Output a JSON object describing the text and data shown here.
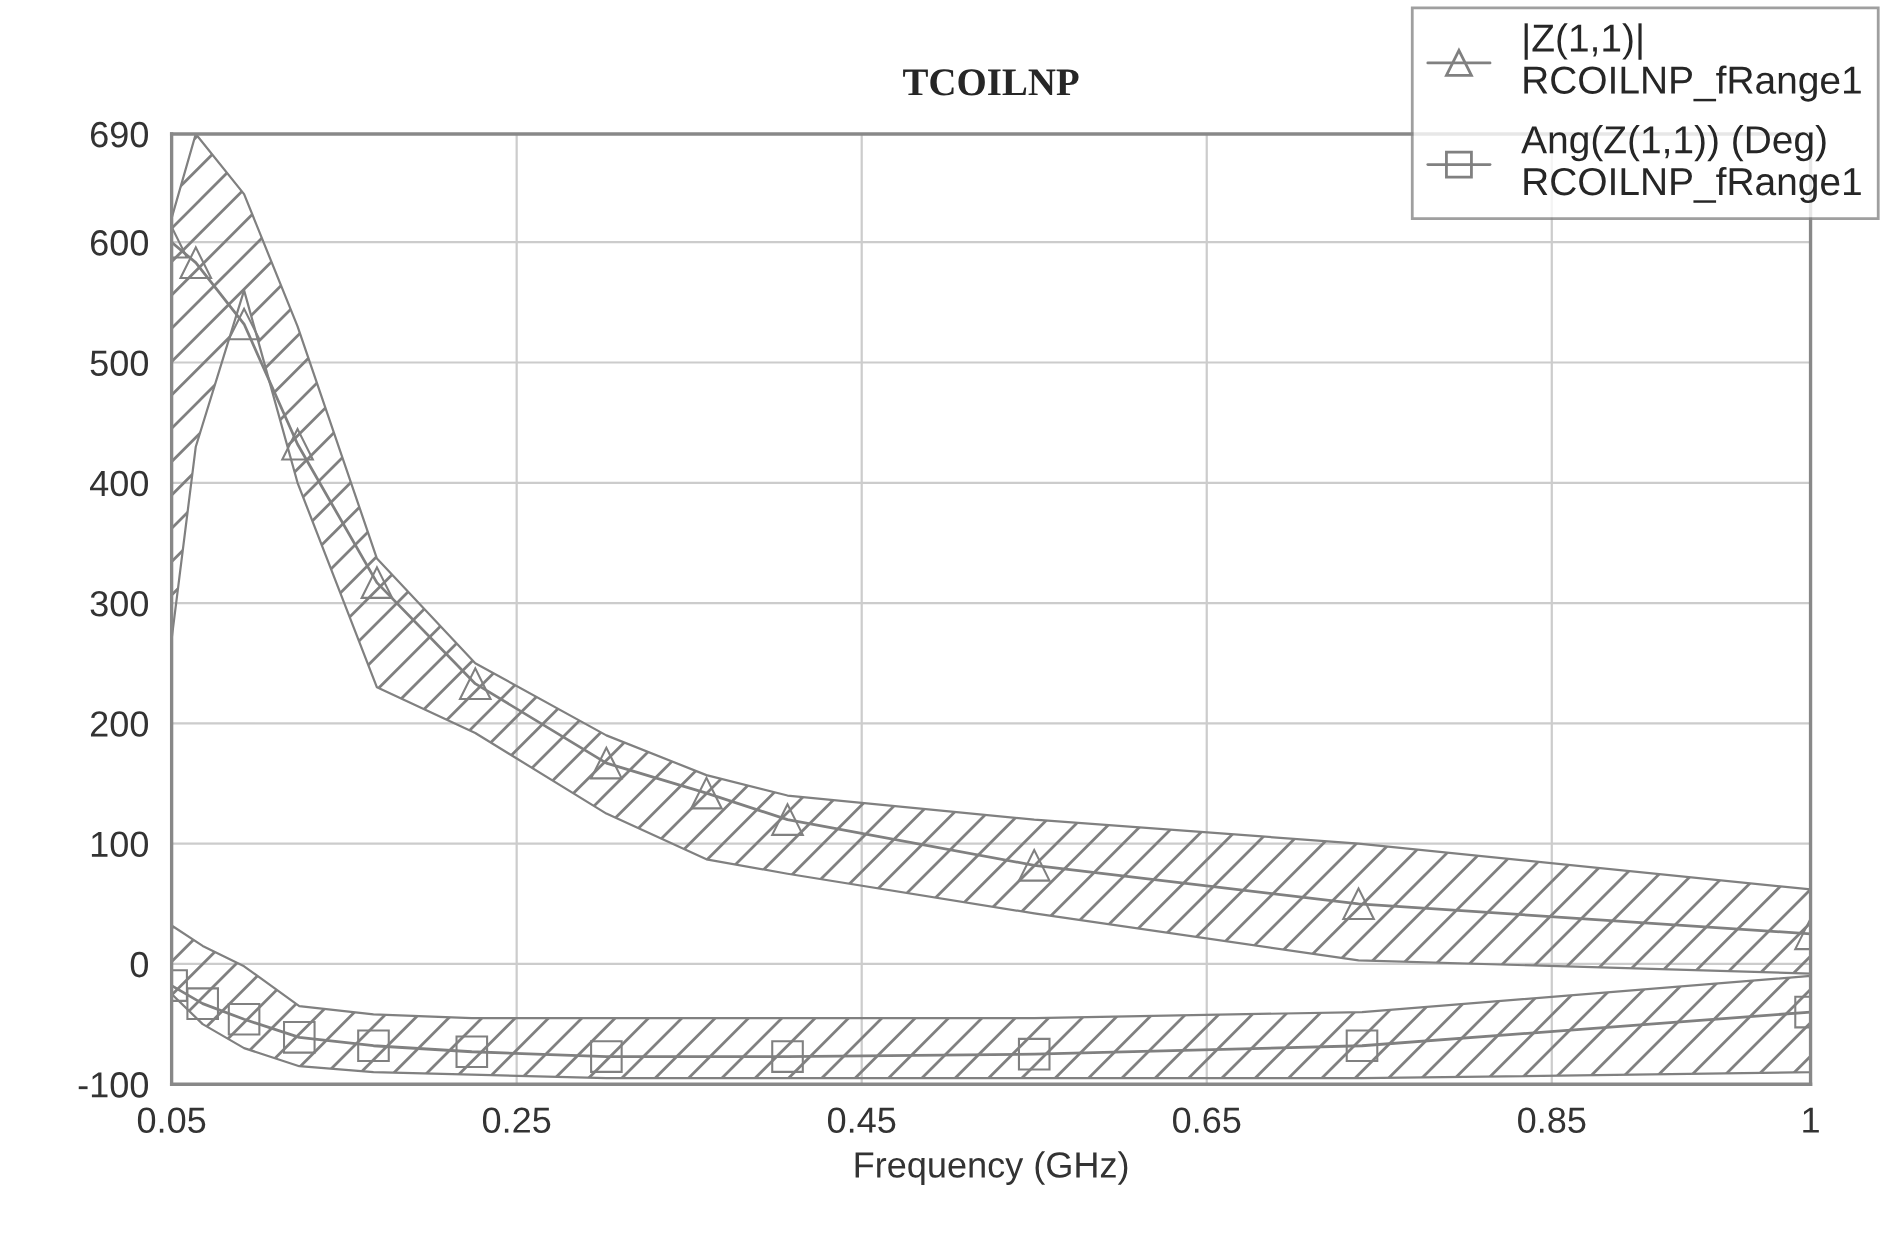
{
  "chart_data": {
    "type": "line",
    "title": "TCOILNP",
    "xlabel": "Frequency (GHz)",
    "xlim": [
      0.05,
      1
    ],
    "xticks": [
      0.05,
      0.25,
      0.45,
      0.65,
      0.85,
      1
    ],
    "ylim": [
      -100,
      690
    ],
    "yticks": [
      -100,
      0,
      100,
      200,
      300,
      400,
      500,
      600,
      690
    ],
    "grid": true,
    "legend": "top right",
    "line_style": "solid",
    "series": [
      {
        "name": "|Z(1,1)|\nRCOILNP_fRange1",
        "color": "#808080",
        "marker": "triangle",
        "x": [
          0.05,
          0.064,
          0.092,
          0.123,
          0.169,
          0.226,
          0.302,
          0.36,
          0.407,
          0.55,
          0.738,
          1.0
        ],
        "values": [
          600,
          583,
          532,
          432,
          317,
          233,
          167,
          142,
          120,
          82,
          50,
          25
        ],
        "upper": [
          620,
          690,
          640,
          530,
          337,
          250,
          190,
          157,
          140,
          120,
          100,
          62
        ],
        "lower": [
          270,
          430,
          560,
          400,
          230,
          192,
          125,
          87,
          75,
          42,
          3,
          -8
        ]
      },
      {
        "name": "Ang(Z(1,1)) (Deg)\nRCOILNP_fRange1",
        "color": "#808080",
        "marker": "square",
        "x": [
          0.05,
          0.068,
          0.092,
          0.124,
          0.167,
          0.224,
          0.302,
          0.407,
          0.55,
          0.74,
          1.0
        ],
        "values": [
          -18,
          -33,
          -46,
          -61,
          -68,
          -73,
          -77,
          -77,
          -75,
          -68,
          -40
        ],
        "upper": [
          32,
          15,
          -2,
          -35,
          -42,
          -45,
          -45,
          -45,
          -45,
          -40,
          -10
        ],
        "lower": [
          -25,
          -50,
          -70,
          -85,
          -90,
          -92,
          -95,
          -95,
          -95,
          -95,
          -90
        ]
      }
    ]
  }
}
